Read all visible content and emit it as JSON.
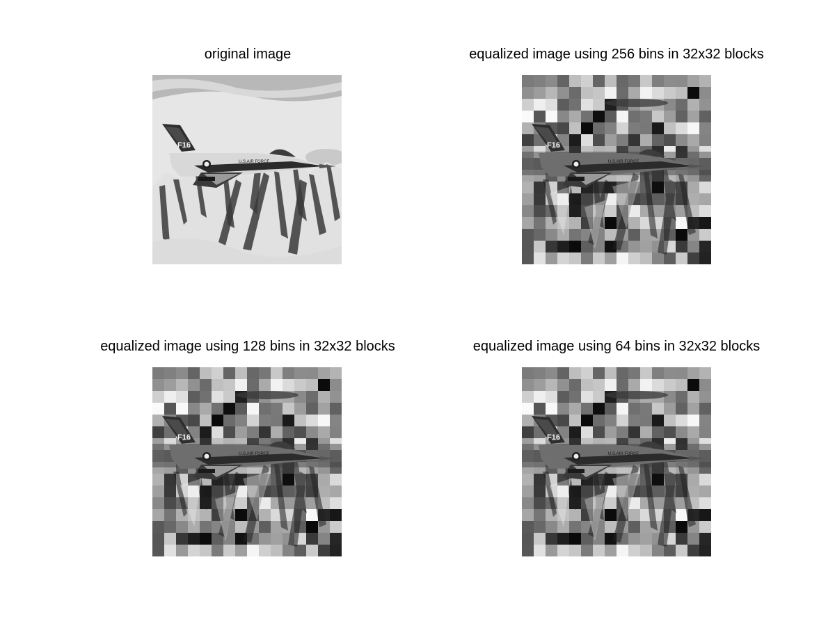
{
  "figure": {
    "panels": [
      {
        "id": "original",
        "title": "original image"
      },
      {
        "id": "eq256",
        "title": "equalized image using 256 bins in 32x32 blocks"
      },
      {
        "id": "eq128",
        "title": "equalized image using 128 bins in 32x32 blocks"
      },
      {
        "id": "eq64",
        "title": "equalized image using 64 bins in 32x32 blocks"
      }
    ],
    "aircraft_markings": {
      "tail": "F16",
      "serial": "01568",
      "fuselage": "U.S.AIR FORCE"
    },
    "colors": {
      "background": "#ffffff",
      "title_text": "#000000"
    }
  }
}
